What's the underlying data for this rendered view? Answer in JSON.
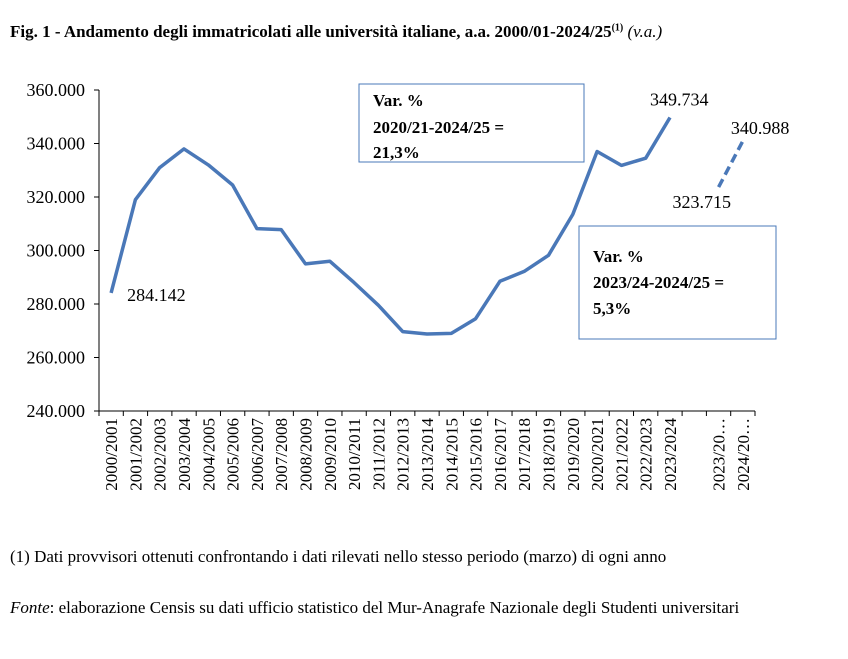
{
  "title": {
    "text": "Fig. 1 - Andamento degli immatricolati alle università italiane, a.a. 2000/01-2024/25",
    "sup": "(1)",
    "unit": "(v.a.)"
  },
  "chart_data": {
    "type": "line",
    "categories": [
      "2000/2001",
      "2001/2002",
      "2002/2003",
      "2003/2004",
      "2004/2005",
      "2005/2006",
      "2006/2007",
      "2007/2008",
      "2008/2009",
      "2009/2010",
      "2010/2011",
      "2011/2012",
      "2012/2013",
      "2013/2014",
      "2014/2015",
      "2015/2016",
      "2016/2017",
      "2017/2018",
      "2018/2019",
      "2019/2020",
      "2020/2021",
      "2021/2022",
      "2022/2023",
      "2023/2024",
      "",
      "2023/20…",
      "2024/20…"
    ],
    "series": [
      {
        "style": "solid",
        "color": "#4a78b8",
        "values": [
          284142,
          319000,
          331000,
          338000,
          332000,
          324500,
          308200,
          307800,
          295000,
          296000,
          288000,
          279500,
          269700,
          268800,
          269000,
          274500,
          288500,
          292200,
          298200,
          313500,
          337000,
          331800,
          334500,
          349734,
          null,
          null,
          null
        ]
      },
      {
        "style": "dashed",
        "color": "#4a78b8",
        "values": [
          null,
          null,
          null,
          null,
          null,
          null,
          null,
          null,
          null,
          null,
          null,
          null,
          null,
          null,
          null,
          null,
          null,
          null,
          null,
          null,
          null,
          null,
          null,
          null,
          null,
          323715,
          340988
        ]
      }
    ],
    "ylim": [
      240000,
      360000
    ],
    "yticks": [
      "240.000",
      "260.000",
      "280.000",
      "300.000",
      "320.000",
      "340.000",
      "360.000"
    ],
    "grid": false,
    "annotations": {
      "start_label": "284.142",
      "peak_label": "349.734",
      "dashed_start_label": "323.715",
      "dashed_end_label": "340.988"
    },
    "callouts": [
      {
        "lines": [
          "Var. %",
          "2020/21-2024/25 =",
          "21,3%"
        ],
        "color": "#e8191a"
      },
      {
        "lines": [
          "Var. %",
          "2023/24-2024/25 =",
          "5,3%"
        ],
        "color": "#e8191a"
      }
    ]
  },
  "footnote": "(1) Dati provvisori ottenuti confrontando i dati rilevati nello stesso periodo (marzo) di ogni anno",
  "source": {
    "label": "Fonte",
    "text": ": elaborazione Censis su dati ufficio statistico del Mur-Anagrafe Nazionale degli Studenti universitari"
  }
}
